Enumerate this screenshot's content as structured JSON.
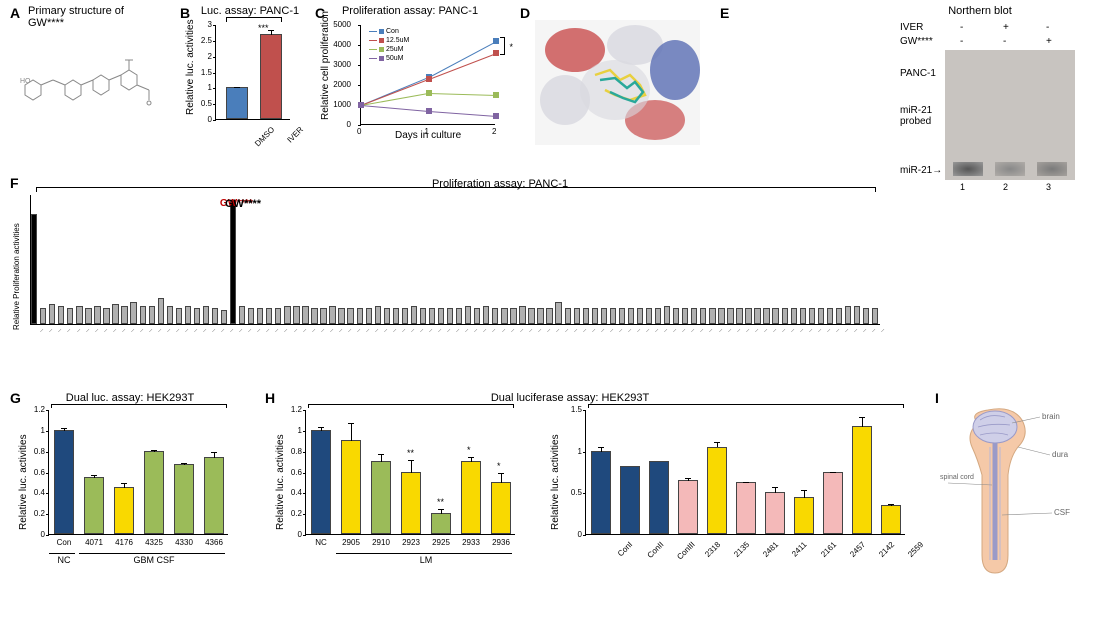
{
  "panelA": {
    "label": "A",
    "title": "Primary structure of GW****"
  },
  "panelB": {
    "label": "B",
    "title": "Luc. assay: PANC-1",
    "ylabel": "Relative luc. activities",
    "yticks": [
      0,
      0.5,
      1,
      1.5,
      2,
      2.5,
      3
    ],
    "categories": [
      "DMSO",
      "IVER"
    ],
    "values": [
      1.0,
      2.7
    ],
    "errors": [
      0.05,
      0.15
    ],
    "colors": [
      "#4a7ebb",
      "#c0504d"
    ],
    "sig": "***"
  },
  "panelC": {
    "label": "C",
    "title": "Proliferation assay: PANC-1",
    "ylabel": "Relative cell proliferation",
    "xlabel": "Days in culture",
    "yticks": [
      0,
      1000,
      2000,
      3000,
      4000,
      5000
    ],
    "xticks": [
      0,
      1,
      2
    ],
    "series": [
      {
        "label": "Con",
        "color": "#4a7ebb",
        "marker": "diamond",
        "values": [
          1000,
          2400,
          4200
        ]
      },
      {
        "label": "12.5uM",
        "color": "#c0504d",
        "marker": "square",
        "values": [
          1000,
          2300,
          3600
        ]
      },
      {
        "label": "25uM",
        "color": "#9bbb59",
        "marker": "triangle",
        "values": [
          1000,
          1600,
          1500
        ]
      },
      {
        "label": "50uM",
        "color": "#8064a2",
        "marker": "x",
        "values": [
          1000,
          700,
          450
        ]
      }
    ],
    "sig": "*"
  },
  "panelD": {
    "label": "D"
  },
  "panelE": {
    "label": "E",
    "title": "Northern blot",
    "row1": "IVER",
    "row2": "GW****",
    "cond_iver": [
      "-",
      "+",
      "-"
    ],
    "cond_gw": [
      "-",
      "-",
      "+"
    ],
    "cell": "PANC-1",
    "probe": "miR-21 probed",
    "arrow": "miR-21",
    "lanes": [
      "1",
      "2",
      "3"
    ]
  },
  "panelF": {
    "label": "F",
    "title": "Proliferation assay: PANC-1",
    "ylabel": "Relative Proliferation activities",
    "highlight_color": "#000000",
    "bar_color": "#b0b0b0",
    "gw_label": "GW****",
    "gw_color": "#c00000",
    "values": [
      5.5,
      0.8,
      1.0,
      0.9,
      0.8,
      0.9,
      0.8,
      0.9,
      0.8,
      1.0,
      0.9,
      1.1,
      0.9,
      0.9,
      1.3,
      0.9,
      0.8,
      0.9,
      0.8,
      0.9,
      0.8,
      0.7,
      6.2,
      0.9,
      0.8,
      0.8,
      0.8,
      0.8,
      0.9,
      0.9,
      0.9,
      0.8,
      0.8,
      0.9,
      0.8,
      0.8,
      0.8,
      0.8,
      0.9,
      0.8,
      0.8,
      0.8,
      0.9,
      0.8,
      0.8,
      0.8,
      0.8,
      0.8,
      0.9,
      0.8,
      0.9,
      0.8,
      0.8,
      0.8,
      0.9,
      0.8,
      0.8,
      0.8,
      1.1,
      0.8,
      0.8,
      0.8,
      0.8,
      0.8,
      0.8,
      0.8,
      0.8,
      0.8,
      0.8,
      0.8,
      0.9,
      0.8,
      0.8,
      0.8,
      0.8,
      0.8,
      0.8,
      0.8,
      0.8,
      0.8,
      0.8,
      0.8,
      0.8,
      0.8,
      0.8,
      0.8,
      0.8,
      0.8,
      0.8,
      0.8,
      0.9,
      0.9,
      0.8,
      0.8
    ],
    "highlight_indices": [
      0,
      22
    ]
  },
  "panelG": {
    "label": "G",
    "title": "Dual luc. assay: HEK293T",
    "ylabel": "Relative luc. activities",
    "yticks": [
      0,
      0.2,
      0.4,
      0.6,
      0.8,
      1,
      1.2
    ],
    "categories": [
      "Con",
      "4071",
      "4176",
      "4325",
      "4330",
      "4366"
    ],
    "values": [
      1.0,
      0.55,
      0.45,
      0.8,
      0.67,
      0.74
    ],
    "errors": [
      0.03,
      0.03,
      0.05,
      0.02,
      0.02,
      0.06
    ],
    "colors": [
      "#1f497d",
      "#9bbb59",
      "#f9d900",
      "#9bbb59",
      "#9bbb59",
      "#9bbb59"
    ],
    "group_labels": [
      "NC",
      "GBM CSF"
    ]
  },
  "panelH": {
    "label": "H",
    "title": "Dual luciferase assay: HEK293T",
    "ylabel": "Relative luc. activities",
    "left": {
      "yticks": [
        0,
        0.2,
        0.4,
        0.6,
        0.8,
        1,
        1.2
      ],
      "categories": [
        "NC",
        "2905",
        "2910",
        "2923",
        "2925",
        "2933",
        "2936"
      ],
      "values": [
        1.0,
        0.9,
        0.7,
        0.6,
        0.2,
        0.7,
        0.5
      ],
      "errors": [
        0.04,
        0.18,
        0.08,
        0.12,
        0.05,
        0.05,
        0.1
      ],
      "colors": [
        "#1f497d",
        "#f9d900",
        "#9bbb59",
        "#f9d900",
        "#9bbb59",
        "#f9d900",
        "#f9d900"
      ],
      "sigs": [
        "",
        "",
        "",
        "**",
        "**",
        "*",
        "*"
      ],
      "group_label": "LM"
    },
    "right": {
      "yticks": [
        0,
        0.5,
        1,
        1.5
      ],
      "categories": [
        "ConI",
        "ConII",
        "ConIII",
        "2318",
        "2135",
        "2481",
        "2411",
        "2161",
        "2457",
        "2142",
        "2559"
      ],
      "values": [
        1.0,
        0.82,
        0.88,
        0.65,
        1.05,
        0.62,
        0.5,
        0.44,
        0.74,
        1.3,
        0.35
      ],
      "errors": [
        0.06,
        0,
        0,
        0.03,
        0.07,
        0.02,
        0.08,
        0.1,
        0.02,
        0.12,
        0.02
      ],
      "colors": [
        "#1f497d",
        "#1f497d",
        "#1f497d",
        "#f4b9b9",
        "#f9d900",
        "#f4b9b9",
        "#f4b9b9",
        "#f9d900",
        "#f4b9b9",
        "#f9d900",
        "#f9d900"
      ]
    }
  },
  "panelI": {
    "label": "I",
    "labels": [
      "brain",
      "dura",
      "spinal cord",
      "CSF"
    ]
  }
}
